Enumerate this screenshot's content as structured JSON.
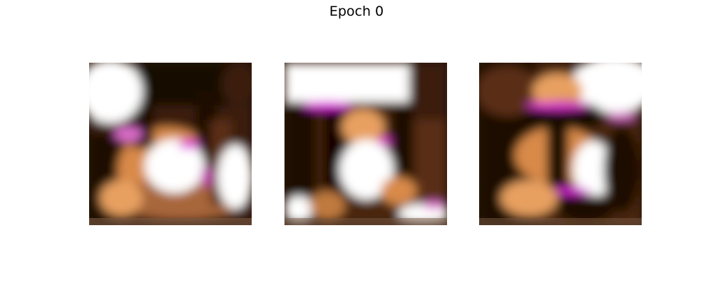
{
  "figure": {
    "title": "Epoch 0",
    "panels": [
      {
        "id": 1,
        "content": "generated-sample-image"
      },
      {
        "id": 2,
        "content": "generated-sample-image"
      },
      {
        "id": 3,
        "content": "generated-sample-image"
      }
    ]
  },
  "palette": {
    "background": "#ffffff",
    "dark": "#1a0a04",
    "brown": "#6b3a1e",
    "orange": "#e8a060",
    "white": "#ffffff",
    "magenta": "#e020e0"
  }
}
